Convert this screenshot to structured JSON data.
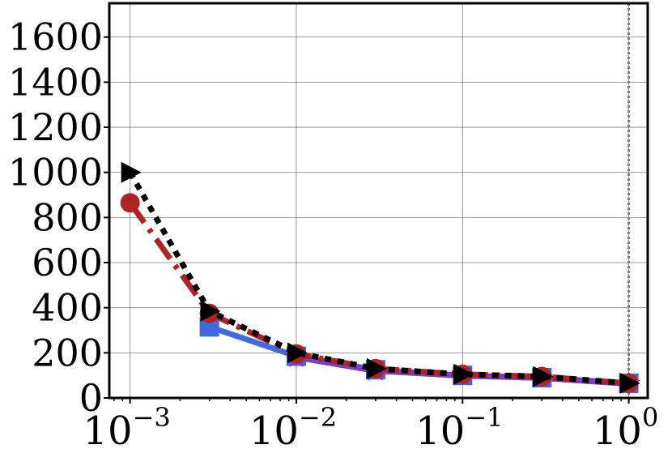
{
  "chart_data": {
    "type": "line",
    "xscale": "log",
    "xlim": [
      0.00075,
      1.3
    ],
    "ylim": [
      0,
      1750
    ],
    "grid": true,
    "x_ticks": [
      {
        "value": 0.001,
        "base": "10",
        "exp": "−3"
      },
      {
        "value": 0.01,
        "base": "10",
        "exp": "−2"
      },
      {
        "value": 0.1,
        "base": "10",
        "exp": "−1"
      },
      {
        "value": 1,
        "base": "10",
        "exp": "0"
      }
    ],
    "y_ticks": [
      0,
      200,
      400,
      600,
      800,
      1000,
      1200,
      1400,
      1600
    ],
    "y_tick_labels": [
      "0",
      "200",
      "400",
      "600",
      "800",
      "1000",
      "1200",
      "1400",
      "1600"
    ],
    "vline": {
      "x": 1,
      "color": "#808080",
      "style": "dotted"
    },
    "series": [
      {
        "color": "#4169e1",
        "line_style": "solid",
        "marker": "square",
        "x": [
          0.003,
          0.01,
          0.03,
          0.1,
          0.3,
          1
        ],
        "y": [
          315,
          185,
          125,
          100,
          90,
          65
        ]
      },
      {
        "color": "#7b3fbf",
        "line_style": "solid",
        "marker": "star",
        "x": [
          0.01,
          0.03,
          0.1,
          0.3,
          1
        ],
        "y": [
          180,
          120,
          98,
          88,
          62
        ]
      },
      {
        "color": "#b22222",
        "line_style": "dashdot",
        "marker": "circle",
        "x": [
          0.001,
          0.003,
          0.01,
          0.03,
          0.1,
          0.3,
          1
        ],
        "y": [
          865,
          375,
          195,
          130,
          105,
          95,
          65
        ]
      },
      {
        "color": "#000000",
        "line_style": "dotted",
        "marker": "triangle-right",
        "x": [
          0.001,
          0.003,
          0.01,
          0.03,
          0.1,
          0.3,
          1
        ],
        "y": [
          1000,
          385,
          200,
          130,
          105,
          95,
          65
        ]
      }
    ]
  }
}
